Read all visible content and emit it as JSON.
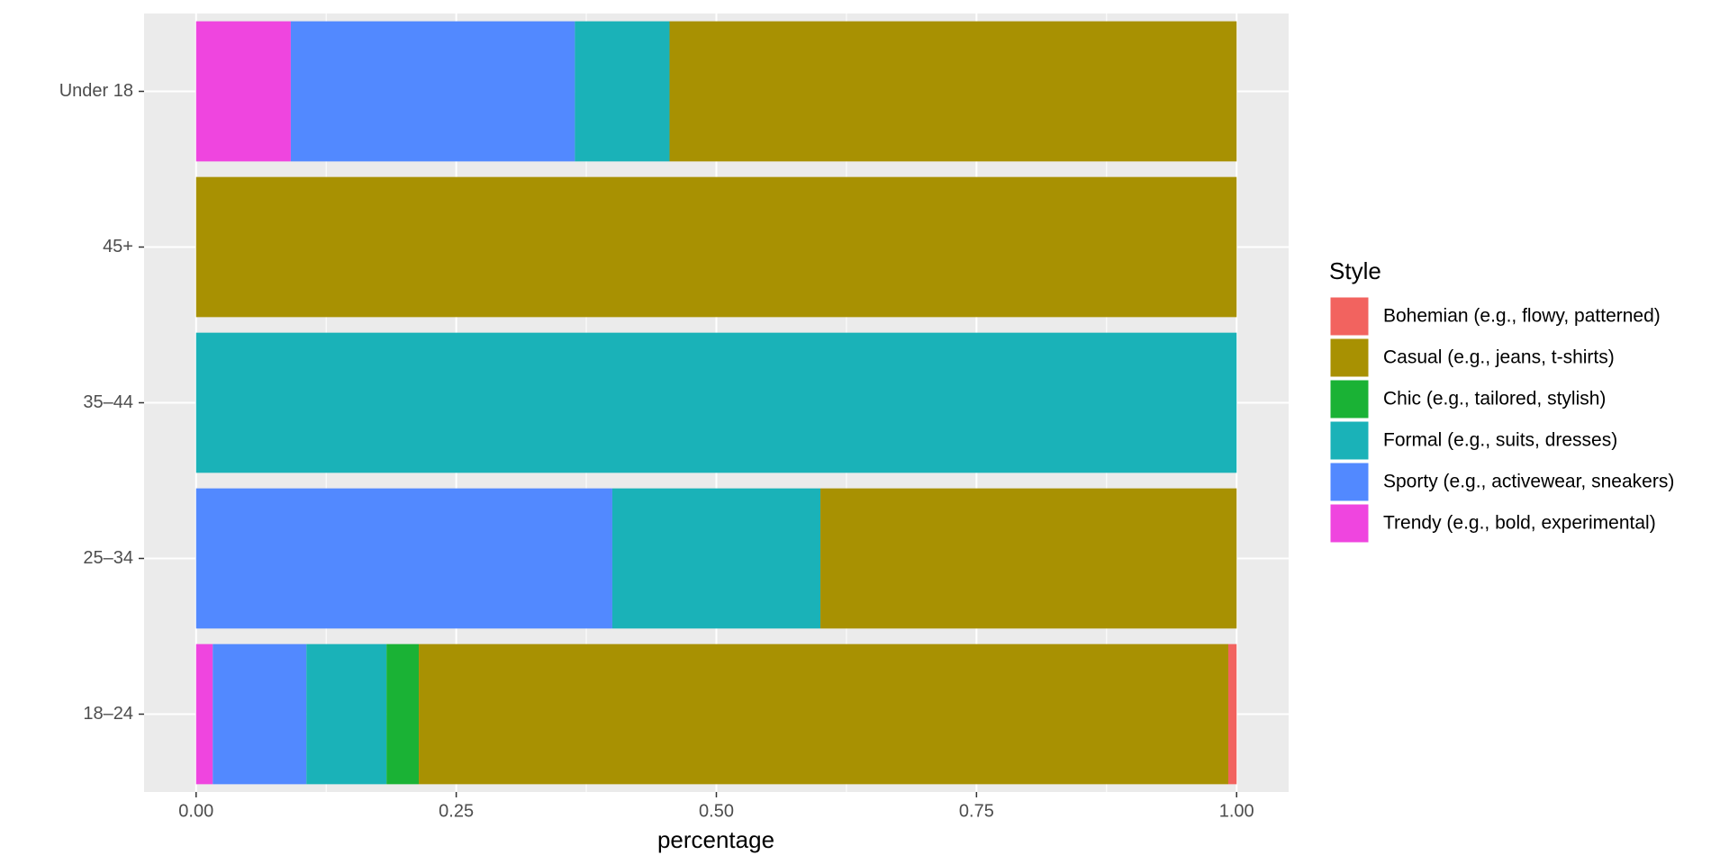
{
  "chart_data": {
    "type": "bar",
    "orientation": "horizontal",
    "stacked": true,
    "xlabel": "percentage",
    "legend_title": "Style",
    "legend_position": "right",
    "grid": true,
    "categories": [
      "Under 18",
      "45+",
      "35–44",
      "25–34",
      "18–24"
    ],
    "series": [
      {
        "name": "Bohemian (e.g., flowy, patterned)",
        "color": "#F2635F",
        "values": [
          0,
          0,
          0,
          0,
          0.008
        ]
      },
      {
        "name": "Casual (e.g., jeans, t-shirts)",
        "color": "#A89102",
        "values": [
          0.545,
          1,
          0,
          0.4,
          0.778
        ]
      },
      {
        "name": "Chic (e.g., tailored, stylish)",
        "color": "#1AB235",
        "values": [
          0,
          0,
          0,
          0,
          0.031
        ]
      },
      {
        "name": "Formal (e.g., suits, dresses)",
        "color": "#1AB2B8",
        "values": [
          0.091,
          0,
          1,
          0.2,
          0.077
        ]
      },
      {
        "name": "Sporty (e.g., activewear, sneakers)",
        "color": "#5289FF",
        "values": [
          0.273,
          0,
          0,
          0.4,
          0.09
        ]
      },
      {
        "name": "Trendy (e.g., bold, experimental)",
        "color": "#EF45DF",
        "values": [
          0.091,
          0,
          0,
          0,
          0.016
        ]
      }
    ],
    "xlim": [
      -0.05,
      1.05
    ],
    "xticks": [
      {
        "value": 0,
        "label": "0.00"
      },
      {
        "value": 0.25,
        "label": "0.25"
      },
      {
        "value": 0.5,
        "label": "0.50"
      },
      {
        "value": 0.75,
        "label": "0.75"
      },
      {
        "value": 1,
        "label": "1.00"
      }
    ]
  }
}
